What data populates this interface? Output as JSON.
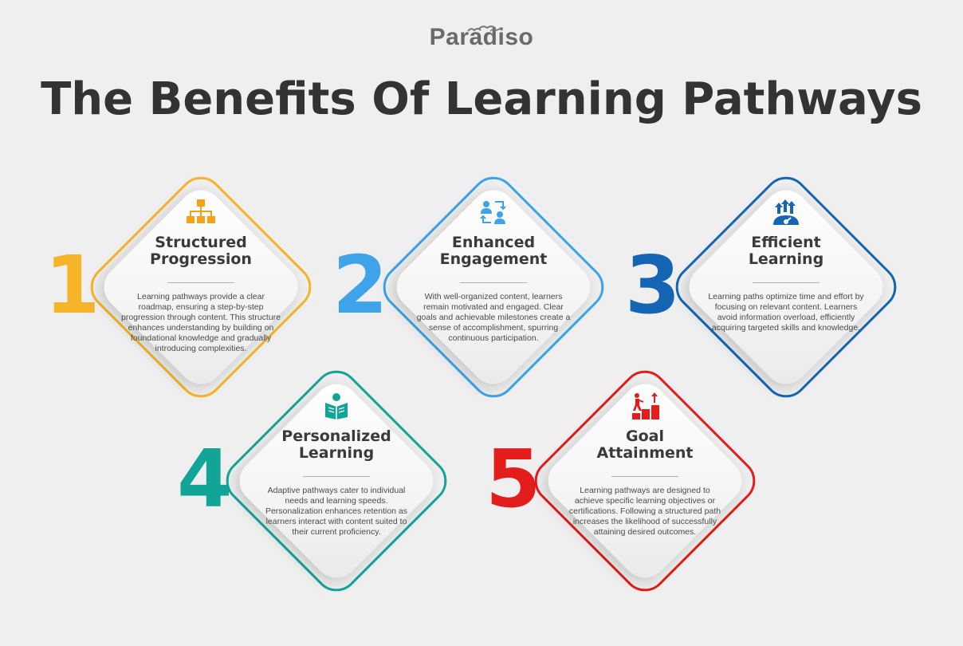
{
  "brand": {
    "name": "Paradiso"
  },
  "title": "The Benefits Of Learning Pathways",
  "cards": [
    {
      "number": "1",
      "title": "Structured\nProgression",
      "description": "Learning pathways provide a clear roadmap, ensuring a step-by-step progression through content. This structure enhances understanding by building on foundational knowledge and gradually introducing complexities.",
      "color": "#f5b42a",
      "icon": "hierarchy-icon"
    },
    {
      "number": "2",
      "title": "Enhanced\nEngagement",
      "description": "With well-organized content, learners remain motivated and engaged. Clear goals and achievable milestones create a sense of accomplishment, spurring continuous participation.",
      "color": "#3ea3e8",
      "icon": "people-exchange-icon"
    },
    {
      "number": "3",
      "title": "Efficient\nLearning",
      "description": "Learning paths optimize time and effort by focusing on relevant content. Learners avoid information overload, efficiently acquiring targeted skills and knowledge.",
      "color": "#1466b5",
      "icon": "growth-arrows-icon"
    },
    {
      "number": "4",
      "title": "Personalized\nLearning",
      "description": "Adaptive pathways cater to individual needs and learning speeds. Personalization enhances retention as learners interact with content suited to their current proficiency.",
      "color": "#12a597",
      "icon": "reader-icon"
    },
    {
      "number": "5",
      "title": "Goal\nAttainment",
      "description": "Learning pathways are designed to achieve specific learning objectives or certifications. Following a structured path increases the likelihood of successfully attaining desired outcomes.",
      "color": "#e31c1c",
      "icon": "goal-steps-icon"
    }
  ]
}
